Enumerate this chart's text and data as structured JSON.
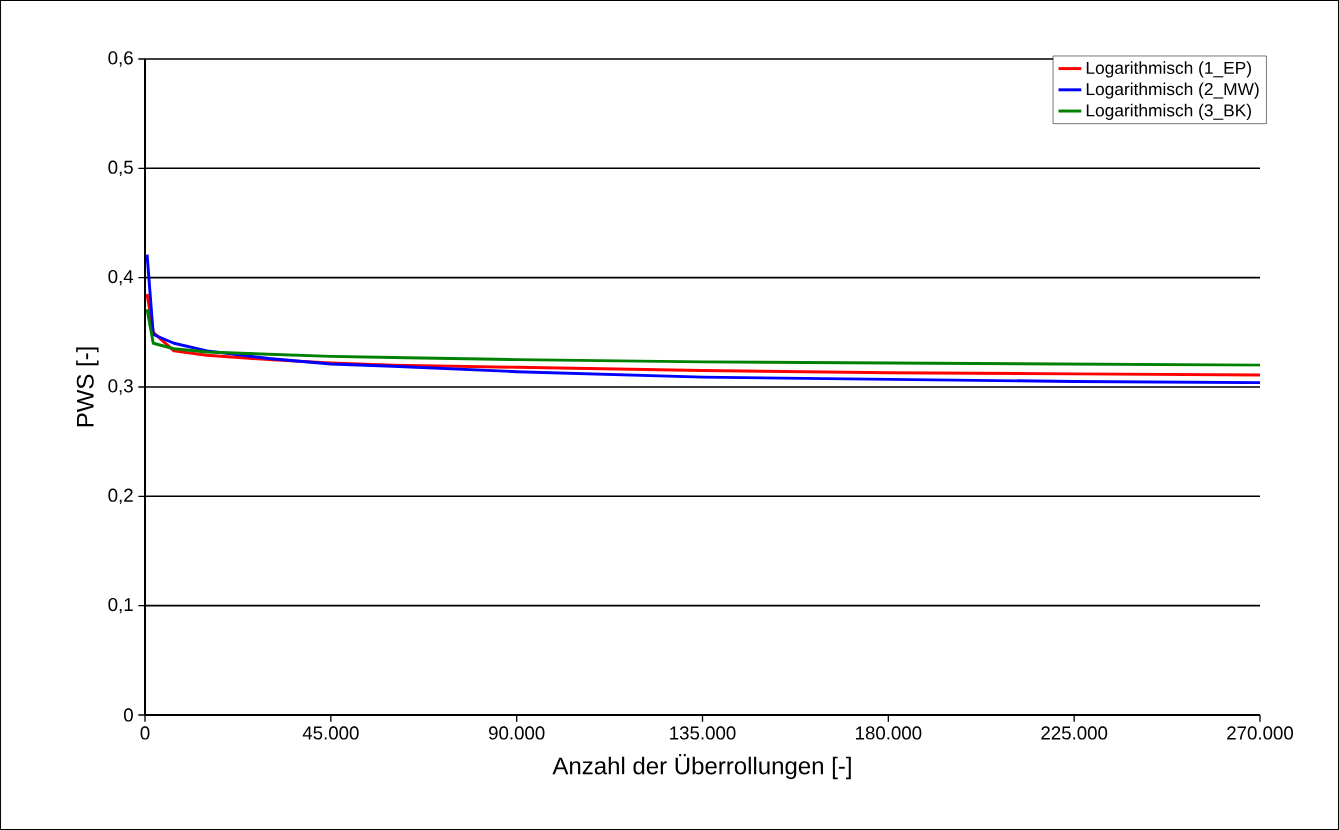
{
  "chart_data": {
    "type": "line",
    "xlabel": "Anzahl der Überrollungen [-]",
    "ylabel": "PWS [-]",
    "x": [
      500,
      2000,
      7000,
      15000,
      30000,
      45000,
      60000,
      90000,
      135000,
      180000,
      225000,
      270000
    ],
    "series": [
      {
        "name": "Logarithmisch (1_EP)",
        "color": "#ff0000",
        "values": [
          0.385,
          0.35,
          0.333,
          0.329,
          0.325,
          0.322,
          0.32,
          0.318,
          0.315,
          0.313,
          0.312,
          0.311
        ]
      },
      {
        "name": "Logarithmisch (2_MW)",
        "color": "#0000ff",
        "values": [
          0.421,
          0.348,
          0.34,
          0.333,
          0.326,
          0.321,
          0.319,
          0.314,
          0.309,
          0.307,
          0.305,
          0.304
        ]
      },
      {
        "name": "Logarithmisch (3_BK)",
        "color": "#008000",
        "values": [
          0.371,
          0.34,
          0.335,
          0.332,
          0.33,
          0.328,
          0.327,
          0.325,
          0.323,
          0.322,
          0.321,
          0.32
        ]
      }
    ],
    "xlim": [
      0,
      270000
    ],
    "ylim": [
      0,
      0.6
    ],
    "xticks": [
      0,
      {
        "value": 45000,
        "label": "45.000"
      },
      {
        "value": 90000,
        "label": "90.000"
      },
      {
        "value": 135000,
        "label": "135.000"
      },
      {
        "value": 180000,
        "label": "180.000"
      },
      {
        "value": 225000,
        "label": "225.000"
      },
      {
        "value": 270000,
        "label": "270.000"
      }
    ],
    "yticks": [
      0,
      {
        "value": 0.1,
        "label": "0,1"
      },
      {
        "value": 0.2,
        "label": "0,2"
      },
      {
        "value": 0.3,
        "label": "0,3"
      },
      {
        "value": 0.4,
        "label": "0,4"
      },
      {
        "value": 0.5,
        "label": "0,5"
      },
      {
        "value": 0.6,
        "label": "0,6"
      }
    ],
    "grid": "y",
    "legend": "top right",
    "marker": "none",
    "line_style": "solid"
  }
}
